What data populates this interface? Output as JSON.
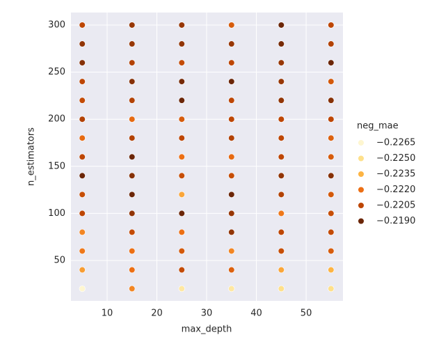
{
  "chart_data": {
    "type": "scatter",
    "xlabel": "max_depth",
    "ylabel": "n_estimators",
    "legend_title": "neg_mae",
    "xlim": [
      2.73,
      57.4
    ],
    "ylim": [
      7.1,
      313.3
    ],
    "xticks": [
      10,
      20,
      30,
      40,
      50
    ],
    "yticks": [
      50,
      100,
      150,
      200,
      250,
      300
    ],
    "grid": true,
    "hue_levels": [
      {
        "value": -0.2265,
        "label": "−0.2265"
      },
      {
        "value": -0.225,
        "label": "−0.2250"
      },
      {
        "value": -0.2235,
        "label": "−0.2235"
      },
      {
        "value": -0.222,
        "label": "−0.2220"
      },
      {
        "value": -0.2205,
        "label": "−0.2205"
      },
      {
        "value": -0.219,
        "label": "−0.2190"
      }
    ],
    "hue_colors": [
      "#fef6d0",
      "#fee08b",
      "#fdb443",
      "#ec6f14",
      "#bd4604",
      "#6b2608"
    ],
    "x": [
      5,
      5,
      5,
      5,
      5,
      5,
      5,
      5,
      5,
      5,
      5,
      5,
      5,
      5,
      5,
      15,
      15,
      15,
      15,
      15,
      15,
      15,
      15,
      15,
      15,
      15,
      15,
      15,
      15,
      15,
      25,
      25,
      25,
      25,
      25,
      25,
      25,
      25,
      25,
      25,
      25,
      25,
      25,
      25,
      25,
      35,
      35,
      35,
      35,
      35,
      35,
      35,
      35,
      35,
      35,
      35,
      35,
      35,
      35,
      35,
      45,
      45,
      45,
      45,
      45,
      45,
      45,
      45,
      45,
      45,
      45,
      45,
      45,
      45,
      45,
      55,
      55,
      55,
      55,
      55,
      55,
      55,
      55,
      55,
      55,
      55,
      55,
      55,
      55,
      55
    ],
    "y": [
      20,
      40,
      60,
      80,
      100,
      120,
      140,
      160,
      180,
      200,
      220,
      240,
      260,
      280,
      300,
      20,
      40,
      60,
      80,
      100,
      120,
      140,
      160,
      180,
      200,
      220,
      240,
      260,
      280,
      300,
      20,
      40,
      60,
      80,
      100,
      120,
      140,
      160,
      180,
      200,
      220,
      240,
      260,
      280,
      300,
      20,
      40,
      60,
      80,
      100,
      120,
      140,
      160,
      180,
      200,
      220,
      240,
      260,
      280,
      300,
      20,
      40,
      60,
      80,
      100,
      120,
      140,
      160,
      180,
      200,
      220,
      240,
      260,
      280,
      300,
      20,
      40,
      60,
      80,
      100,
      120,
      140,
      160,
      180,
      200,
      220,
      240,
      260,
      280,
      300
    ],
    "hue": [
      -0.227,
      -0.223,
      -0.2222,
      -0.2225,
      -0.2205,
      -0.2208,
      -0.219,
      -0.2205,
      -0.2218,
      -0.2203,
      -0.2207,
      -0.2205,
      -0.2195,
      -0.2197,
      -0.2205,
      -0.2225,
      -0.222,
      -0.222,
      -0.2207,
      -0.2197,
      -0.219,
      -0.2195,
      -0.2188,
      -0.2203,
      -0.2218,
      -0.2203,
      -0.2195,
      -0.2203,
      -0.2198,
      -0.2198,
      -0.2255,
      -0.2207,
      -0.2212,
      -0.222,
      -0.219,
      -0.2232,
      -0.2208,
      -0.222,
      -0.2205,
      -0.2213,
      -0.219,
      -0.2192,
      -0.2207,
      -0.2197,
      -0.2198,
      -0.2255,
      -0.2215,
      -0.2225,
      -0.2197,
      -0.2198,
      -0.219,
      -0.2208,
      -0.2218,
      -0.2203,
      -0.2205,
      -0.2205,
      -0.219,
      -0.2205,
      -0.2198,
      -0.2213,
      -0.225,
      -0.2232,
      -0.2208,
      -0.2205,
      -0.2222,
      -0.2203,
      -0.2197,
      -0.2205,
      -0.2205,
      -0.2205,
      -0.2197,
      -0.2198,
      -0.2198,
      -0.2192,
      -0.219,
      -0.225,
      -0.2235,
      -0.2213,
      -0.2207,
      -0.2208,
      -0.2212,
      -0.2195,
      -0.2213,
      -0.2215,
      -0.2205,
      -0.2195,
      -0.2212,
      -0.219,
      -0.2203,
      -0.2205
    ]
  }
}
